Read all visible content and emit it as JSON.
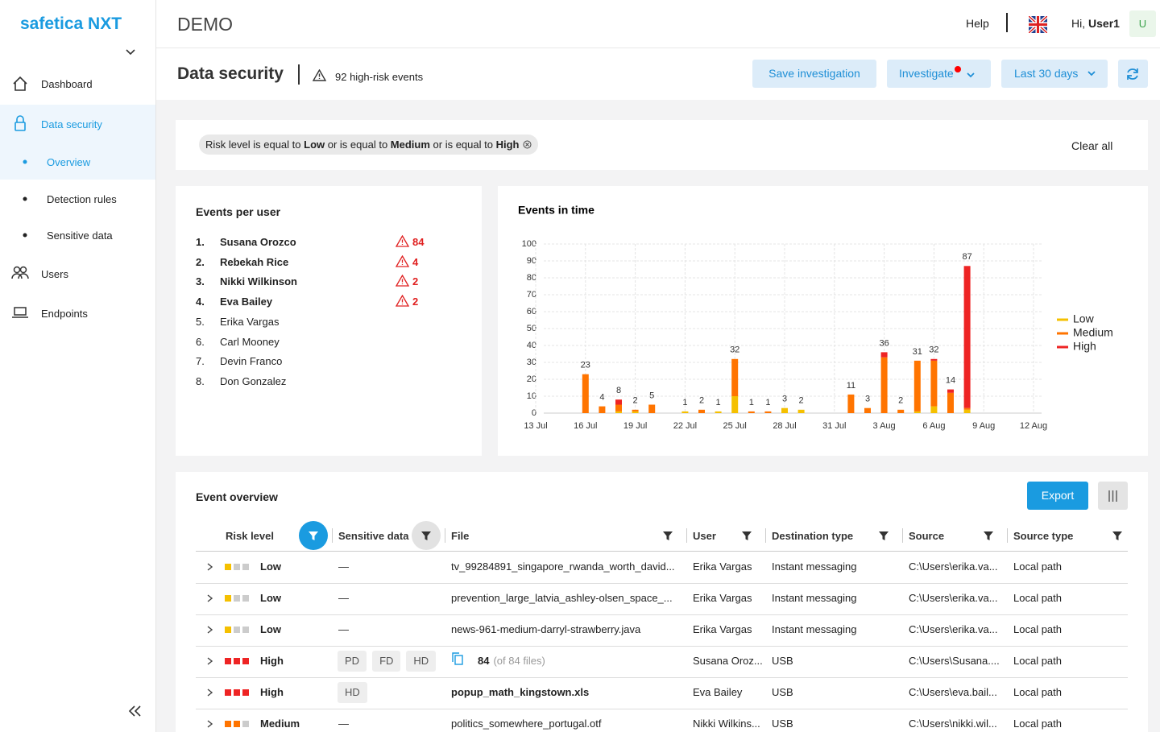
{
  "sidebar": {
    "logo": "safetica NXT",
    "items": [
      "Dashboard",
      "Data security",
      "Overview",
      "Detection rules",
      "Sensitive data",
      "Users",
      "Endpoints"
    ]
  },
  "topbar": {
    "title": "DEMO",
    "help": "Help",
    "greeting": "Hi,",
    "user": "User1",
    "avatar": "U"
  },
  "header": {
    "title": "Data security",
    "alert": "92 high-risk events",
    "buttons": [
      "Save investigation",
      "Investigate",
      "Last 30 days"
    ]
  },
  "filter": {
    "parts": [
      "Risk level is equal to ",
      "Low",
      " or is equal to ",
      "Medium",
      " or is equal to ",
      "High"
    ],
    "clear": "Clear all"
  },
  "users_card": {
    "title": "Events per user",
    "users": [
      {
        "rank": "1.",
        "name": "Susana Orozco",
        "count": 84
      },
      {
        "rank": "2.",
        "name": "Rebekah Rice",
        "count": 4
      },
      {
        "rank": "3.",
        "name": "Nikki Wilkinson",
        "count": 2
      },
      {
        "rank": "4.",
        "name": "Eva Bailey",
        "count": 2
      },
      {
        "rank": "5.",
        "name": "Erika Vargas"
      },
      {
        "rank": "6.",
        "name": "Carl Mooney"
      },
      {
        "rank": "7.",
        "name": "Devin Franco"
      },
      {
        "rank": "8.",
        "name": "Don Gonzalez"
      }
    ]
  },
  "chart_data": {
    "type": "bar",
    "stacked": true,
    "title": "Events in time",
    "categories": [
      "13 Jul",
      null,
      null,
      "16 Jul",
      null,
      null,
      "19 Jul",
      null,
      null,
      "22 Jul",
      null,
      null,
      "25 Jul",
      null,
      null,
      "28 Jul",
      null,
      null,
      "31 Jul",
      null,
      null,
      "3 Aug",
      null,
      null,
      "6 Aug",
      null,
      null,
      "9 Aug",
      null,
      null,
      "12 Aug"
    ],
    "series": [
      {
        "name": "Low",
        "color": "#f5c000",
        "values": [
          null,
          null,
          null,
          null,
          null,
          1,
          1,
          null,
          null,
          1,
          null,
          1,
          10,
          null,
          null,
          3,
          2,
          null,
          null,
          null,
          null,
          null,
          null,
          1,
          4,
          null,
          2,
          null,
          null,
          null,
          null
        ]
      },
      {
        "name": "Medium",
        "color": "#ff7400",
        "values": [
          null,
          null,
          null,
          23,
          4,
          4,
          1,
          5,
          null,
          null,
          2,
          null,
          22,
          1,
          1,
          null,
          null,
          null,
          null,
          11,
          3,
          33,
          2,
          30,
          27,
          12,
          1,
          null,
          null,
          null,
          null
        ]
      },
      {
        "name": "High",
        "color": "#ee2424",
        "values": [
          null,
          null,
          null,
          null,
          null,
          3,
          null,
          null,
          null,
          null,
          null,
          null,
          null,
          null,
          null,
          null,
          null,
          null,
          null,
          null,
          null,
          3,
          null,
          null,
          1,
          2,
          84,
          null,
          null,
          null,
          null
        ]
      }
    ],
    "totals": [
      null,
      null,
      null,
      23,
      4,
      8,
      2,
      5,
      null,
      1,
      2,
      1,
      32,
      1,
      1,
      3,
      2,
      null,
      null,
      11,
      3,
      36,
      2,
      31,
      32,
      14,
      87,
      null,
      null,
      null,
      null
    ],
    "ylim": [
      0,
      100
    ],
    "yticks": [
      0,
      10,
      20,
      30,
      40,
      50,
      60,
      70,
      80,
      90,
      100
    ],
    "grid": true,
    "legend": "right"
  },
  "events": {
    "title": "Event overview",
    "export": "Export",
    "columns": [
      "Risk level",
      "Sensitive data",
      "File",
      "User",
      "Destination type",
      "Source",
      "Source type"
    ],
    "rows": [
      {
        "risk": "Low",
        "sensitive": "—",
        "file": "tv_99284891_singapore_rwanda_worth_david...",
        "user": "Erika Vargas",
        "destination": "Instant messaging",
        "source": "C:\\Users\\erika.va...",
        "source_type": "Local path"
      },
      {
        "risk": "Low",
        "sensitive": "—",
        "file": "prevention_large_latvia_ashley-olsen_space_...",
        "user": "Erika Vargas",
        "destination": "Instant messaging",
        "source": "C:\\Users\\erika.va...",
        "source_type": "Local path"
      },
      {
        "risk": "Low",
        "sensitive": "—",
        "file": "news-961-medium-darryl-strawberry.java",
        "user": "Erika Vargas",
        "destination": "Instant messaging",
        "source": "C:\\Users\\erika.va...",
        "source_type": "Local path"
      },
      {
        "risk": "High",
        "sensitive": [
          "PD",
          "FD",
          "HD"
        ],
        "file": {
          "count": "84",
          "note": "(of 84 files)"
        },
        "user": "Susana Oroz...",
        "destination": "USB",
        "source": "C:\\Users\\Susana....",
        "source_type": "Local path"
      },
      {
        "risk": "High",
        "sensitive": [
          "HD"
        ],
        "file": "popup_math_kingstown.xls",
        "file_bold": true,
        "user": "Eva Bailey",
        "destination": "USB",
        "source": "C:\\Users\\eva.bail...",
        "source_type": "Local path"
      },
      {
        "risk": "Medium",
        "sensitive": "—",
        "file": "politics_somewhere_portugal.otf",
        "user": "Nikki Wilkins...",
        "destination": "USB",
        "source": "C:\\Users\\nikki.wil...",
        "source_type": "Local path"
      }
    ]
  }
}
